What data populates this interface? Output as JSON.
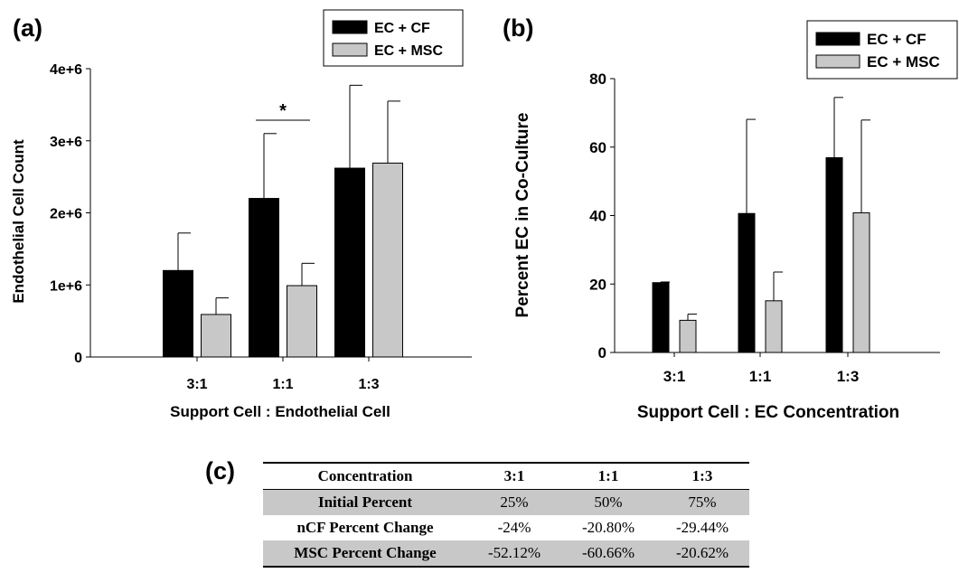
{
  "panels": [
    {
      "id": "a",
      "label": "(a)"
    },
    {
      "id": "b",
      "label": "(b)"
    },
    {
      "id": "c",
      "label": "(c)"
    }
  ],
  "chart_data": [
    {
      "panel": "(a)",
      "type": "bar",
      "title": "",
      "xlabel": "Support Cell : Endothelial Cell",
      "ylabel": "Endothelial Cell Count",
      "categories": [
        "3:1",
        "1:1",
        "1:3"
      ],
      "yticks": [
        {
          "value": 0,
          "label": "0"
        },
        {
          "value": 1000000,
          "label": "1e+6"
        },
        {
          "value": 2000000,
          "label": "2e+6"
        },
        {
          "value": 3000000,
          "label": "3e+6"
        },
        {
          "value": 4000000,
          "label": "4e+6"
        }
      ],
      "ylim": [
        0,
        4000000
      ],
      "legend_position": "top-right",
      "series": [
        {
          "name": "EC + CF",
          "color": "#000000",
          "values": [
            1200000,
            2200000,
            2620000
          ],
          "errors": [
            520000,
            900000,
            1150000
          ]
        },
        {
          "name": "EC + MSC",
          "color": "#c8c8c8",
          "values": [
            590000,
            990000,
            2690000
          ],
          "errors": [
            230000,
            310000,
            860000
          ]
        }
      ],
      "annotations": [
        {
          "text": "*",
          "category": "1:1"
        }
      ]
    },
    {
      "panel": "(b)",
      "type": "bar",
      "title": "",
      "xlabel": "Support Cell : EC Concentration",
      "ylabel": "Percent EC in Co-Culture",
      "categories": [
        "3:1",
        "1:1",
        "1:3"
      ],
      "yticks": [
        {
          "value": 0,
          "label": "0"
        },
        {
          "value": 20,
          "label": "20"
        },
        {
          "value": 40,
          "label": "40"
        },
        {
          "value": 60,
          "label": "60"
        },
        {
          "value": 80,
          "label": "80"
        }
      ],
      "ylim": [
        0,
        80
      ],
      "legend_position": "top-right",
      "series": [
        {
          "name": "EC + CF",
          "color": "#000000",
          "values": [
            20.4,
            40.6,
            56.9
          ],
          "errors": [
            0.2,
            27.5,
            17.6
          ]
        },
        {
          "name": "EC + MSC",
          "color": "#c8c8c8",
          "values": [
            9.4,
            15.1,
            40.8
          ],
          "errors": [
            1.8,
            8.4,
            27.1
          ]
        }
      ]
    },
    {
      "panel": "(c)",
      "type": "table",
      "columns": [
        "Concentration",
        "3:1",
        "1:1",
        "1:3"
      ],
      "rows": [
        {
          "label": "Initial Percent",
          "values": [
            "25%",
            "50%",
            "75%"
          ]
        },
        {
          "label": "nCF Percent Change",
          "values": [
            "-24%",
            "-20.80%",
            "-29.44%"
          ]
        },
        {
          "label": "MSC Percent Change",
          "values": [
            "-52.12%",
            "-60.66%",
            "-20.62%"
          ]
        }
      ]
    }
  ]
}
